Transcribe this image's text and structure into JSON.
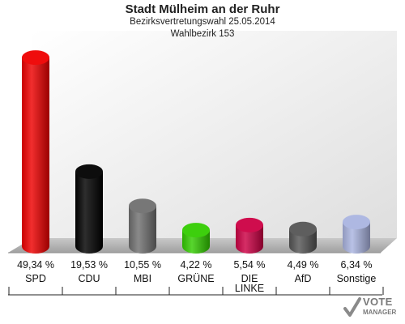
{
  "header": {
    "title": "Stadt Mülheim an der Ruhr",
    "subtitle1": "Bezirksvertretungswahl 25.05.2014",
    "subtitle2": "Wahlbezirk 153"
  },
  "logo": {
    "line1": "VOTE",
    "line2": "MANAGER"
  },
  "chart_data": {
    "type": "bar",
    "title": "Stadt Mülheim an der Ruhr",
    "subtitle": "Bezirksvertretungswahl 25.05.2014 / Wahlbezirk 153",
    "categories": [
      "SPD",
      "CDU",
      "MBI",
      "GRÜNE",
      "DIE LINKE",
      "AfD",
      "Sonstige"
    ],
    "category_lines": [
      [
        "SPD"
      ],
      [
        "CDU"
      ],
      [
        "MBI"
      ],
      [
        "GRÜNE"
      ],
      [
        "DIE",
        "LINKE"
      ],
      [
        "AfD"
      ],
      [
        "Sonstige"
      ]
    ],
    "values": [
      49.34,
      19.53,
      10.55,
      4.22,
      5.54,
      4.49,
      6.34
    ],
    "value_labels": [
      "49,34 %",
      "19,53 %",
      "10,55 %",
      "4,22 %",
      "5,54 %",
      "4,49 %",
      "6,34 %"
    ],
    "colors": [
      "#ee0000",
      "#000000",
      "#707070",
      "#33cc00",
      "#cc0044",
      "#555555",
      "#aab4e0"
    ],
    "ylim": [
      0,
      50
    ],
    "grid": false,
    "legend": "none"
  }
}
